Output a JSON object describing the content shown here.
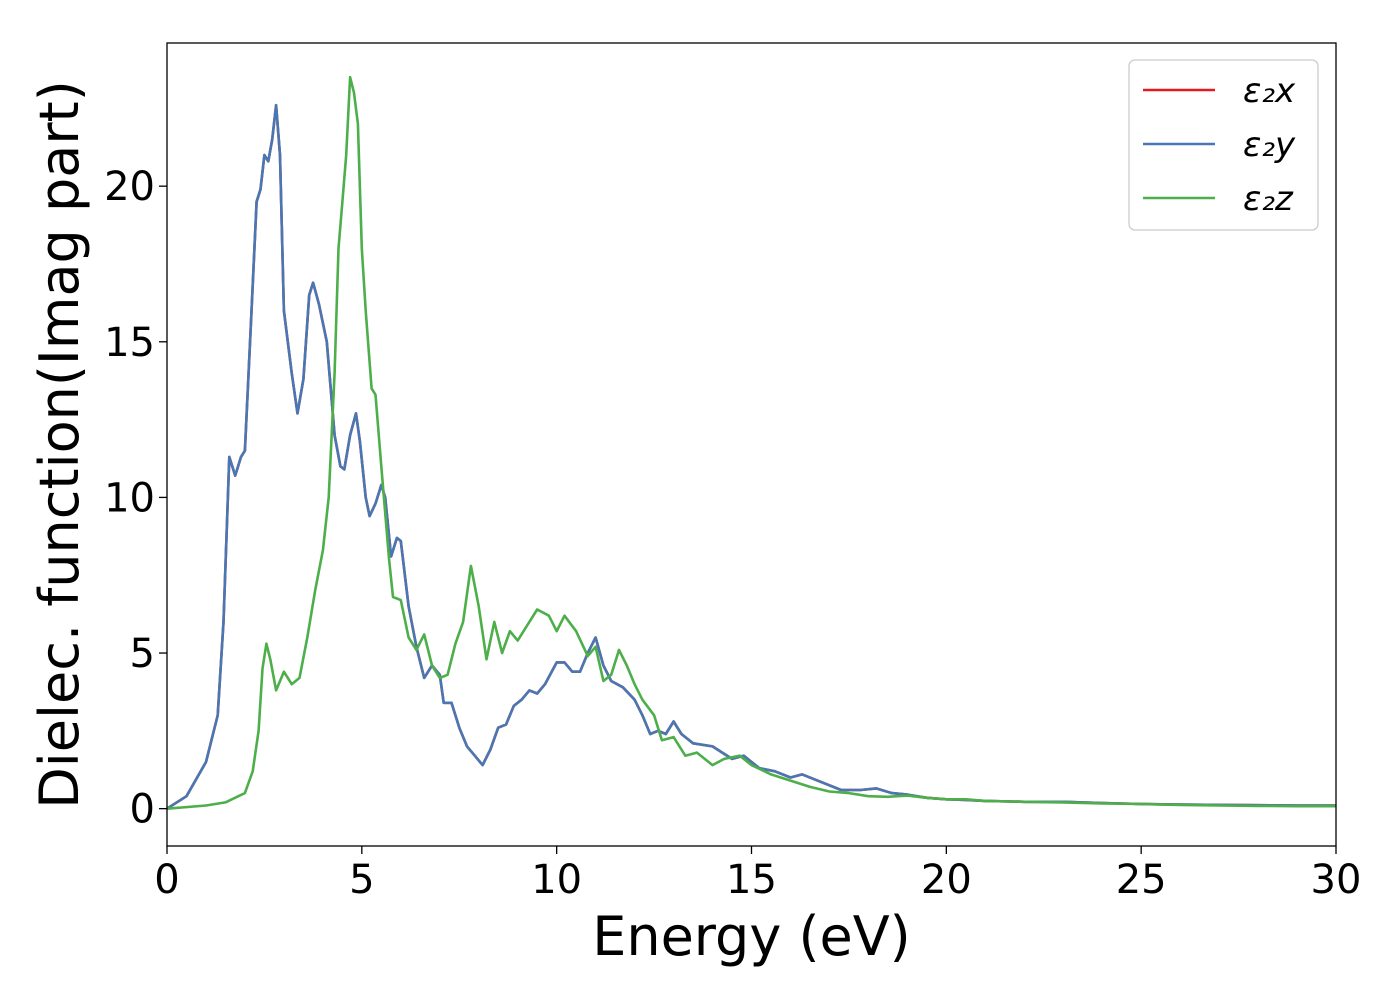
{
  "chart_data": {
    "type": "line",
    "title": "",
    "xlabel": "Energy (eV)",
    "ylabel": "Dielec. function(Imag part)",
    "xlim": [
      0,
      30
    ],
    "ylim": [
      -1.2,
      24.6
    ],
    "xticks": [
      "0",
      "5",
      "10",
      "15",
      "20",
      "25",
      "30"
    ],
    "yticks": [
      "0",
      "5",
      "10",
      "15",
      "20"
    ],
    "grid": false,
    "legend_position": "top-right",
    "series": [
      {
        "name": "ε₂x",
        "color": "#e41a1c",
        "points": [
          [
            0,
            0
          ],
          [
            0.5,
            0.4
          ],
          [
            1.0,
            1.5
          ],
          [
            1.3,
            3.0
          ],
          [
            1.45,
            6.0
          ],
          [
            1.6,
            11.3
          ],
          [
            1.75,
            10.7
          ],
          [
            1.9,
            11.3
          ],
          [
            2.0,
            11.5
          ],
          [
            2.15,
            15.5
          ],
          [
            2.3,
            19.5
          ],
          [
            2.4,
            19.9
          ],
          [
            2.5,
            21.0
          ],
          [
            2.6,
            20.8
          ],
          [
            2.7,
            21.5
          ],
          [
            2.8,
            22.6
          ],
          [
            2.9,
            21.0
          ],
          [
            3.0,
            16.0
          ],
          [
            3.2,
            14.0
          ],
          [
            3.35,
            12.7
          ],
          [
            3.5,
            13.8
          ],
          [
            3.65,
            16.5
          ],
          [
            3.75,
            16.9
          ],
          [
            3.9,
            16.2
          ],
          [
            4.1,
            15.0
          ],
          [
            4.3,
            12.0
          ],
          [
            4.45,
            11.0
          ],
          [
            4.55,
            10.9
          ],
          [
            4.7,
            12.0
          ],
          [
            4.85,
            12.7
          ],
          [
            4.95,
            11.8
          ],
          [
            5.1,
            10.0
          ],
          [
            5.2,
            9.4
          ],
          [
            5.35,
            9.8
          ],
          [
            5.5,
            10.4
          ],
          [
            5.6,
            10.0
          ],
          [
            5.75,
            8.1
          ],
          [
            5.9,
            8.7
          ],
          [
            6.0,
            8.6
          ],
          [
            6.2,
            6.5
          ],
          [
            6.4,
            5.2
          ],
          [
            6.6,
            4.2
          ],
          [
            6.8,
            4.6
          ],
          [
            7.0,
            4.3
          ],
          [
            7.1,
            3.4
          ],
          [
            7.3,
            3.4
          ],
          [
            7.5,
            2.6
          ],
          [
            7.7,
            2.0
          ],
          [
            7.9,
            1.7
          ],
          [
            8.1,
            1.4
          ],
          [
            8.3,
            1.9
          ],
          [
            8.5,
            2.6
          ],
          [
            8.7,
            2.7
          ],
          [
            8.9,
            3.3
          ],
          [
            9.1,
            3.5
          ],
          [
            9.3,
            3.8
          ],
          [
            9.5,
            3.7
          ],
          [
            9.7,
            4.0
          ],
          [
            10.0,
            4.7
          ],
          [
            10.2,
            4.7
          ],
          [
            10.4,
            4.4
          ],
          [
            10.6,
            4.4
          ],
          [
            10.8,
            5.0
          ],
          [
            11.0,
            5.5
          ],
          [
            11.2,
            4.6
          ],
          [
            11.4,
            4.1
          ],
          [
            11.7,
            3.9
          ],
          [
            12.0,
            3.5
          ],
          [
            12.2,
            3.0
          ],
          [
            12.4,
            2.4
          ],
          [
            12.6,
            2.5
          ],
          [
            12.8,
            2.4
          ],
          [
            13.0,
            2.8
          ],
          [
            13.2,
            2.4
          ],
          [
            13.5,
            2.1
          ],
          [
            14.0,
            2.0
          ],
          [
            14.5,
            1.6
          ],
          [
            14.8,
            1.7
          ],
          [
            15.2,
            1.3
          ],
          [
            15.6,
            1.2
          ],
          [
            16.0,
            1.0
          ],
          [
            16.3,
            1.1
          ],
          [
            16.8,
            0.85
          ],
          [
            17.3,
            0.6
          ],
          [
            17.8,
            0.6
          ],
          [
            18.2,
            0.65
          ],
          [
            18.6,
            0.5
          ],
          [
            19.0,
            0.45
          ],
          [
            19.5,
            0.35
          ],
          [
            20.0,
            0.3
          ],
          [
            20.5,
            0.28
          ],
          [
            21.0,
            0.25
          ],
          [
            22.0,
            0.22
          ],
          [
            23.0,
            0.22
          ],
          [
            24.0,
            0.18
          ],
          [
            25.0,
            0.15
          ],
          [
            26.0,
            0.13
          ],
          [
            27.0,
            0.12
          ],
          [
            28.0,
            0.11
          ],
          [
            29.0,
            0.1
          ],
          [
            30.0,
            0.1
          ]
        ]
      },
      {
        "name": "ε₂y",
        "color": "#4878b4",
        "points": [
          [
            0,
            0
          ],
          [
            0.5,
            0.4
          ],
          [
            1.0,
            1.5
          ],
          [
            1.3,
            3.0
          ],
          [
            1.45,
            6.0
          ],
          [
            1.6,
            11.3
          ],
          [
            1.75,
            10.7
          ],
          [
            1.9,
            11.3
          ],
          [
            2.0,
            11.5
          ],
          [
            2.15,
            15.5
          ],
          [
            2.3,
            19.5
          ],
          [
            2.4,
            19.9
          ],
          [
            2.5,
            21.0
          ],
          [
            2.6,
            20.8
          ],
          [
            2.7,
            21.5
          ],
          [
            2.8,
            22.6
          ],
          [
            2.9,
            21.0
          ],
          [
            3.0,
            16.0
          ],
          [
            3.2,
            14.0
          ],
          [
            3.35,
            12.7
          ],
          [
            3.5,
            13.8
          ],
          [
            3.65,
            16.5
          ],
          [
            3.75,
            16.9
          ],
          [
            3.9,
            16.2
          ],
          [
            4.1,
            15.0
          ],
          [
            4.3,
            12.0
          ],
          [
            4.45,
            11.0
          ],
          [
            4.55,
            10.9
          ],
          [
            4.7,
            12.0
          ],
          [
            4.85,
            12.7
          ],
          [
            4.95,
            11.8
          ],
          [
            5.1,
            10.0
          ],
          [
            5.2,
            9.4
          ],
          [
            5.35,
            9.8
          ],
          [
            5.5,
            10.4
          ],
          [
            5.6,
            10.0
          ],
          [
            5.75,
            8.1
          ],
          [
            5.9,
            8.7
          ],
          [
            6.0,
            8.6
          ],
          [
            6.2,
            6.5
          ],
          [
            6.4,
            5.2
          ],
          [
            6.6,
            4.2
          ],
          [
            6.8,
            4.6
          ],
          [
            7.0,
            4.3
          ],
          [
            7.1,
            3.4
          ],
          [
            7.3,
            3.4
          ],
          [
            7.5,
            2.6
          ],
          [
            7.7,
            2.0
          ],
          [
            7.9,
            1.7
          ],
          [
            8.1,
            1.4
          ],
          [
            8.3,
            1.9
          ],
          [
            8.5,
            2.6
          ],
          [
            8.7,
            2.7
          ],
          [
            8.9,
            3.3
          ],
          [
            9.1,
            3.5
          ],
          [
            9.3,
            3.8
          ],
          [
            9.5,
            3.7
          ],
          [
            9.7,
            4.0
          ],
          [
            10.0,
            4.7
          ],
          [
            10.2,
            4.7
          ],
          [
            10.4,
            4.4
          ],
          [
            10.6,
            4.4
          ],
          [
            10.8,
            5.0
          ],
          [
            11.0,
            5.5
          ],
          [
            11.2,
            4.6
          ],
          [
            11.4,
            4.1
          ],
          [
            11.7,
            3.9
          ],
          [
            12.0,
            3.5
          ],
          [
            12.2,
            3.0
          ],
          [
            12.4,
            2.4
          ],
          [
            12.6,
            2.5
          ],
          [
            12.8,
            2.4
          ],
          [
            13.0,
            2.8
          ],
          [
            13.2,
            2.4
          ],
          [
            13.5,
            2.1
          ],
          [
            14.0,
            2.0
          ],
          [
            14.5,
            1.6
          ],
          [
            14.8,
            1.7
          ],
          [
            15.2,
            1.3
          ],
          [
            15.6,
            1.2
          ],
          [
            16.0,
            1.0
          ],
          [
            16.3,
            1.1
          ],
          [
            16.8,
            0.85
          ],
          [
            17.3,
            0.6
          ],
          [
            17.8,
            0.6
          ],
          [
            18.2,
            0.65
          ],
          [
            18.6,
            0.5
          ],
          [
            19.0,
            0.45
          ],
          [
            19.5,
            0.35
          ],
          [
            20.0,
            0.3
          ],
          [
            20.5,
            0.28
          ],
          [
            21.0,
            0.25
          ],
          [
            22.0,
            0.22
          ],
          [
            23.0,
            0.22
          ],
          [
            24.0,
            0.18
          ],
          [
            25.0,
            0.15
          ],
          [
            26.0,
            0.13
          ],
          [
            27.0,
            0.12
          ],
          [
            28.0,
            0.11
          ],
          [
            29.0,
            0.1
          ],
          [
            30.0,
            0.1
          ]
        ]
      },
      {
        "name": "ε₂z",
        "color": "#4daf4a",
        "points": [
          [
            0,
            0
          ],
          [
            1.0,
            0.1
          ],
          [
            1.5,
            0.2
          ],
          [
            2.0,
            0.5
          ],
          [
            2.2,
            1.2
          ],
          [
            2.35,
            2.5
          ],
          [
            2.45,
            4.5
          ],
          [
            2.55,
            5.3
          ],
          [
            2.65,
            4.8
          ],
          [
            2.8,
            3.8
          ],
          [
            3.0,
            4.4
          ],
          [
            3.2,
            4.0
          ],
          [
            3.4,
            4.2
          ],
          [
            3.6,
            5.5
          ],
          [
            3.8,
            7.0
          ],
          [
            4.0,
            8.3
          ],
          [
            4.15,
            10.0
          ],
          [
            4.3,
            14.0
          ],
          [
            4.4,
            18.0
          ],
          [
            4.5,
            19.5
          ],
          [
            4.6,
            21.0
          ],
          [
            4.7,
            23.5
          ],
          [
            4.8,
            23.0
          ],
          [
            4.9,
            22.0
          ],
          [
            5.0,
            18.0
          ],
          [
            5.1,
            16.0
          ],
          [
            5.25,
            13.5
          ],
          [
            5.35,
            13.3
          ],
          [
            5.5,
            11.0
          ],
          [
            5.6,
            9.5
          ],
          [
            5.7,
            8.0
          ],
          [
            5.8,
            6.8
          ],
          [
            6.0,
            6.7
          ],
          [
            6.2,
            5.5
          ],
          [
            6.4,
            5.1
          ],
          [
            6.6,
            5.6
          ],
          [
            6.8,
            4.6
          ],
          [
            7.0,
            4.2
          ],
          [
            7.2,
            4.3
          ],
          [
            7.4,
            5.3
          ],
          [
            7.6,
            6.0
          ],
          [
            7.8,
            7.8
          ],
          [
            8.0,
            6.5
          ],
          [
            8.2,
            4.8
          ],
          [
            8.4,
            6.0
          ],
          [
            8.6,
            5.0
          ],
          [
            8.8,
            5.7
          ],
          [
            9.0,
            5.4
          ],
          [
            9.2,
            5.8
          ],
          [
            9.5,
            6.4
          ],
          [
            9.8,
            6.2
          ],
          [
            10.0,
            5.7
          ],
          [
            10.2,
            6.2
          ],
          [
            10.5,
            5.7
          ],
          [
            10.8,
            4.9
          ],
          [
            11.0,
            5.2
          ],
          [
            11.2,
            4.1
          ],
          [
            11.4,
            4.3
          ],
          [
            11.6,
            5.1
          ],
          [
            11.8,
            4.6
          ],
          [
            12.0,
            4.0
          ],
          [
            12.2,
            3.5
          ],
          [
            12.5,
            3.0
          ],
          [
            12.7,
            2.2
          ],
          [
            13.0,
            2.3
          ],
          [
            13.3,
            1.7
          ],
          [
            13.6,
            1.8
          ],
          [
            14.0,
            1.4
          ],
          [
            14.3,
            1.6
          ],
          [
            14.7,
            1.7
          ],
          [
            15.0,
            1.4
          ],
          [
            15.5,
            1.1
          ],
          [
            16.0,
            0.9
          ],
          [
            16.5,
            0.7
          ],
          [
            17.0,
            0.55
          ],
          [
            17.5,
            0.5
          ],
          [
            18.0,
            0.4
          ],
          [
            18.5,
            0.38
          ],
          [
            19.0,
            0.42
          ],
          [
            19.5,
            0.35
          ],
          [
            20.0,
            0.3
          ],
          [
            20.5,
            0.3
          ],
          [
            21.0,
            0.25
          ],
          [
            22.0,
            0.22
          ],
          [
            23.0,
            0.2
          ],
          [
            24.0,
            0.17
          ],
          [
            25.0,
            0.15
          ],
          [
            26.0,
            0.12
          ],
          [
            27.0,
            0.1
          ],
          [
            28.0,
            0.09
          ],
          [
            29.0,
            0.08
          ],
          [
            30.0,
            0.08
          ]
        ]
      }
    ]
  }
}
